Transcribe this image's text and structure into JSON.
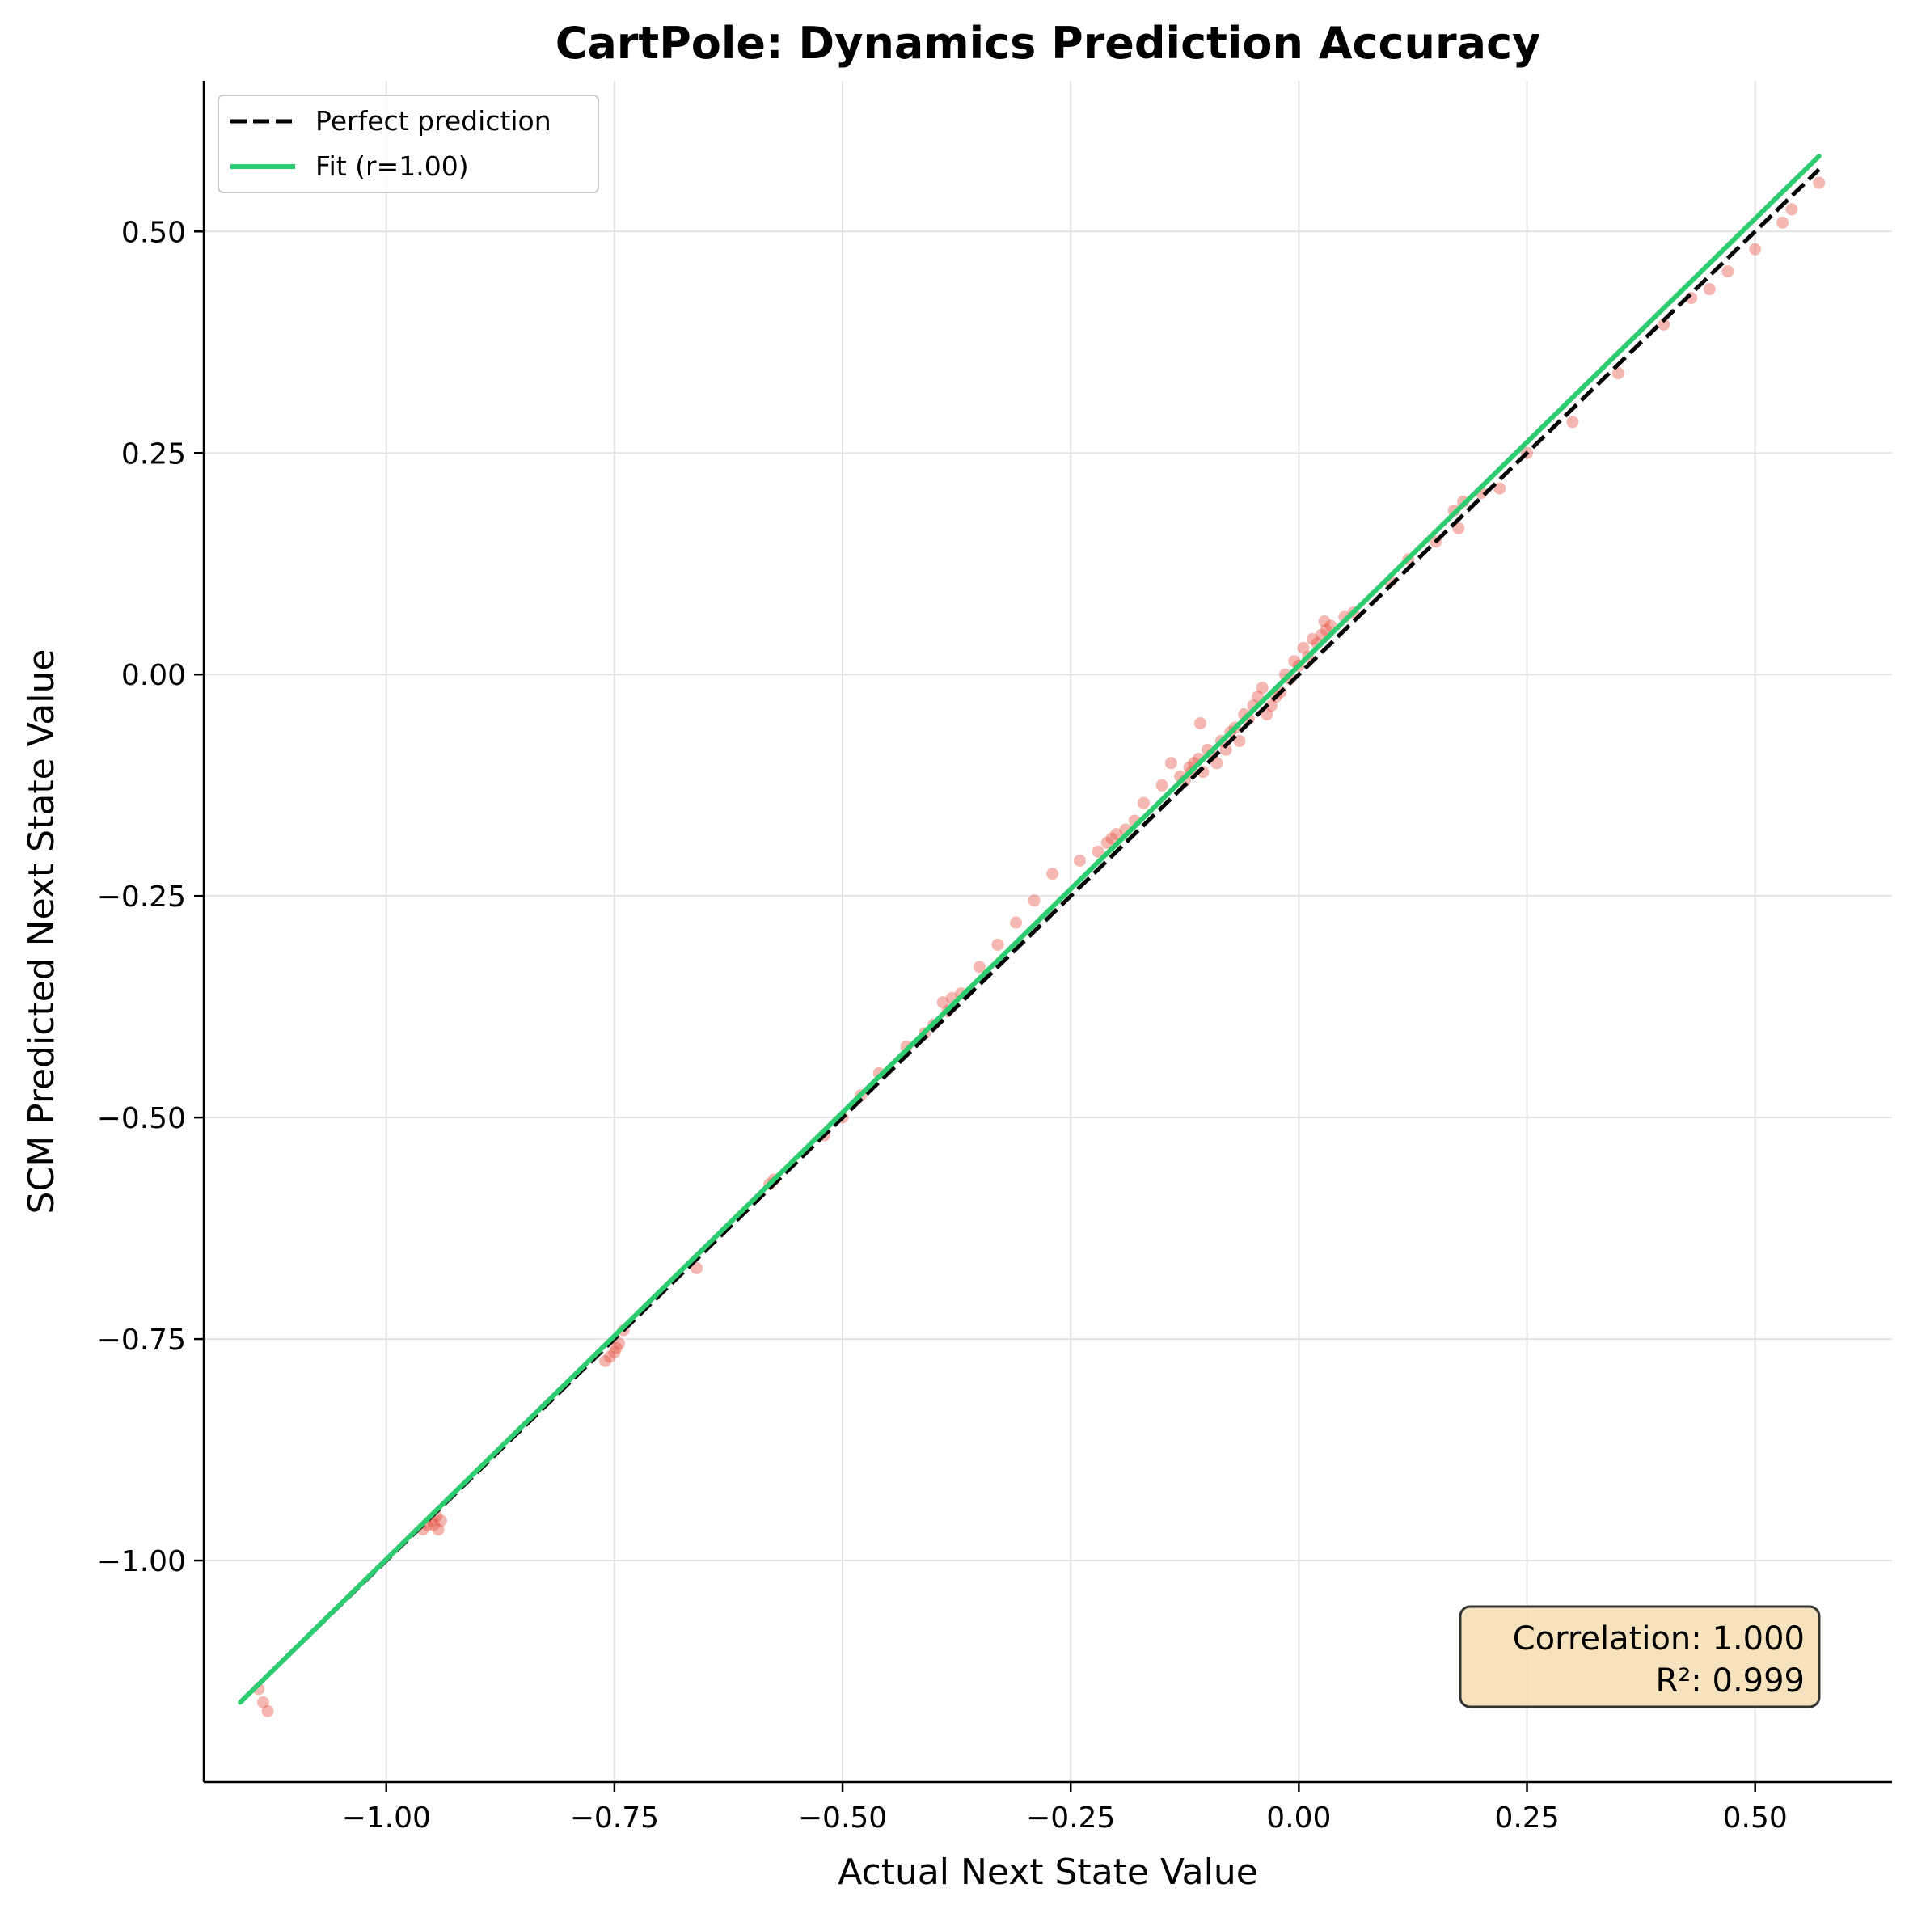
{
  "chart_data": {
    "type": "scatter",
    "title": "CartPole: Dynamics Prediction Accuracy",
    "xlabel": "Actual Next State Value",
    "ylabel": "SCM Predicted Next State Value",
    "xlim": [
      -1.2,
      0.65
    ],
    "ylim": [
      -1.25,
      0.67
    ],
    "xticks": [
      -1.0,
      -0.75,
      -0.5,
      -0.25,
      0.0,
      0.25,
      0.5
    ],
    "xtick_labels": [
      "−1.00",
      "−0.75",
      "−0.50",
      "−0.25",
      "0.00",
      "0.25",
      "0.50"
    ],
    "yticks": [
      -1.0,
      -0.75,
      -0.5,
      -0.25,
      0.0,
      0.25,
      0.5
    ],
    "ytick_labels": [
      "−1.00",
      "−0.75",
      "−0.50",
      "−0.25",
      "0.00",
      "0.25",
      "0.50"
    ],
    "grid": true,
    "legend_position": "top-left",
    "colors": {
      "points": "#e74c3c",
      "perfect_line": "#000000",
      "fit_line": "#2ecc71",
      "stats_box_fill": "#f5deb3",
      "stats_box_edge": "#333333"
    },
    "series": [
      {
        "name": "Perfect prediction",
        "kind": "line",
        "style": "dashed",
        "x": [
          -1.15,
          0.57
        ],
        "y": [
          -1.15,
          0.57
        ]
      },
      {
        "name": "Fit (r=1.00)",
        "kind": "line",
        "style": "solid",
        "x": [
          -1.16,
          0.57
        ],
        "y": [
          -1.16,
          0.585
        ]
      },
      {
        "name": "samples",
        "kind": "scatter",
        "x": [
          -1.14,
          -1.135,
          -1.13,
          -0.96,
          -0.955,
          -0.95,
          -0.948,
          -0.945,
          -0.943,
          -0.94,
          -0.76,
          -0.755,
          -0.75,
          -0.748,
          -0.745,
          -0.74,
          -0.66,
          -0.58,
          -0.575,
          -0.52,
          -0.5,
          -0.48,
          -0.46,
          -0.43,
          -0.41,
          -0.4,
          -0.39,
          -0.385,
          -0.38,
          -0.37,
          -0.35,
          -0.33,
          -0.31,
          -0.29,
          -0.27,
          -0.24,
          -0.22,
          -0.21,
          -0.205,
          -0.2,
          -0.19,
          -0.18,
          -0.17,
          -0.15,
          -0.14,
          -0.13,
          -0.125,
          -0.12,
          -0.118,
          -0.115,
          -0.11,
          -0.108,
          -0.105,
          -0.1,
          -0.095,
          -0.09,
          -0.085,
          -0.08,
          -0.075,
          -0.07,
          -0.065,
          -0.06,
          -0.055,
          -0.05,
          -0.045,
          -0.04,
          -0.035,
          -0.03,
          -0.025,
          -0.02,
          -0.015,
          -0.01,
          -0.005,
          0.0,
          0.005,
          0.01,
          0.015,
          0.02,
          0.025,
          0.028,
          0.03,
          0.035,
          0.05,
          0.06,
          0.1,
          0.12,
          0.15,
          0.17,
          0.175,
          0.18,
          0.2,
          0.22,
          0.25,
          0.3,
          0.35,
          0.4,
          0.43,
          0.45,
          0.47,
          0.5,
          0.53,
          0.54,
          0.57
        ],
        "y": [
          -1.145,
          -1.16,
          -1.17,
          -0.965,
          -0.96,
          -0.955,
          -0.96,
          -0.95,
          -0.965,
          -0.955,
          -0.775,
          -0.77,
          -0.765,
          -0.76,
          -0.755,
          -0.74,
          -0.67,
          -0.575,
          -0.57,
          -0.52,
          -0.5,
          -0.475,
          -0.45,
          -0.42,
          -0.405,
          -0.395,
          -0.37,
          -0.38,
          -0.365,
          -0.36,
          -0.33,
          -0.305,
          -0.28,
          -0.255,
          -0.225,
          -0.21,
          -0.2,
          -0.19,
          -0.185,
          -0.18,
          -0.175,
          -0.165,
          -0.145,
          -0.125,
          -0.1,
          -0.115,
          -0.12,
          -0.105,
          -0.11,
          -0.1,
          -0.095,
          -0.055,
          -0.11,
          -0.085,
          -0.09,
          -0.1,
          -0.075,
          -0.085,
          -0.065,
          -0.06,
          -0.075,
          -0.045,
          -0.05,
          -0.035,
          -0.025,
          -0.015,
          -0.045,
          -0.035,
          -0.025,
          -0.02,
          0.0,
          -0.005,
          0.015,
          0.01,
          0.03,
          0.02,
          0.04,
          0.035,
          0.045,
          0.06,
          0.05,
          0.055,
          0.065,
          0.07,
          0.105,
          0.13,
          0.15,
          0.185,
          0.165,
          0.195,
          0.205,
          0.21,
          0.25,
          0.285,
          0.34,
          0.395,
          0.425,
          0.435,
          0.455,
          0.48,
          0.51,
          0.525,
          0.555
        ]
      }
    ],
    "annotation": {
      "correlation": "Correlation: 1.000",
      "r2": "R²: 0.999"
    }
  }
}
